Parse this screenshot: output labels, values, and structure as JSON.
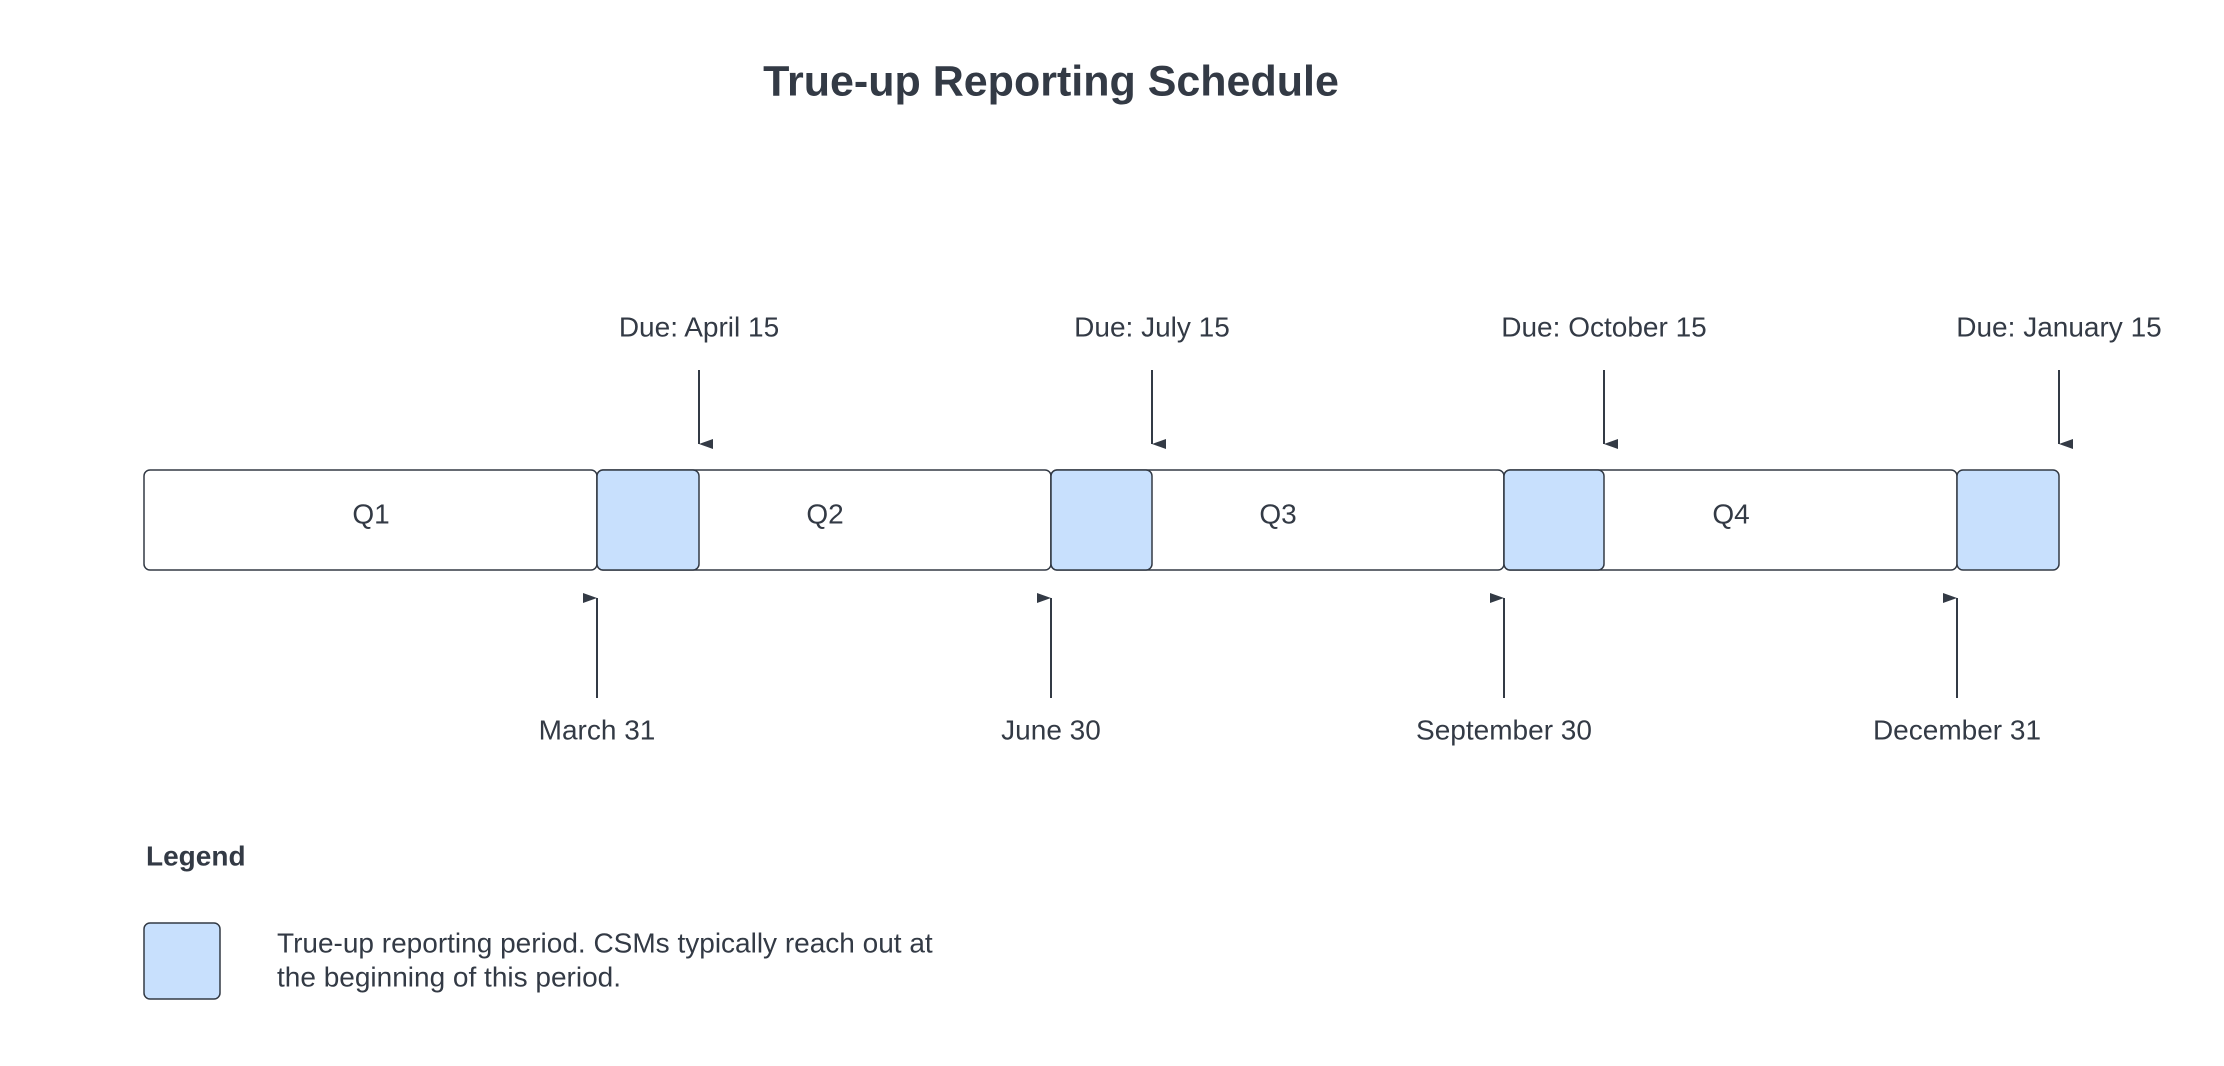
{
  "title": "True-up Reporting Schedule",
  "quarters": [
    "Q1",
    "Q2",
    "Q3",
    "Q4"
  ],
  "due_dates": [
    "Due: April 15",
    "Due: July 15",
    "Due: October 15",
    "Due: January 15"
  ],
  "period_ends": [
    "March 31",
    "June 30",
    "September 30",
    "December 31"
  ],
  "legend": {
    "title": "Legend",
    "lines": [
      "True-up reporting period. CSMs typically reach out at",
      "the beginning of this period."
    ]
  }
}
